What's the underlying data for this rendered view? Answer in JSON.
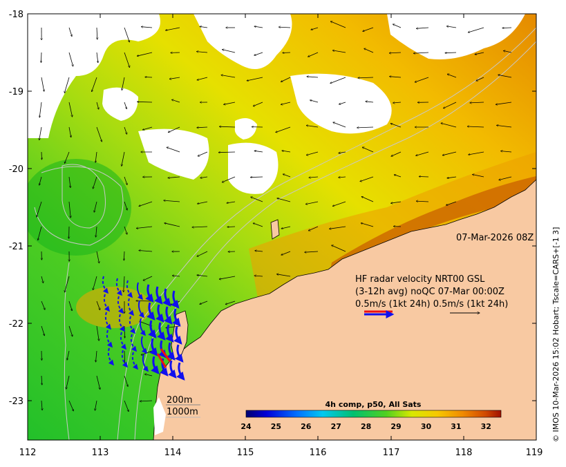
{
  "map": {
    "lat_ticks": [
      "-18",
      "-19",
      "-20",
      "-21",
      "-22",
      "-23"
    ],
    "lon_ticks": [
      "112",
      "113",
      "114",
      "115",
      "116",
      "117",
      "118",
      "119"
    ],
    "timestamp": "07-Mar-2026 08Z",
    "legend": {
      "line1": "HF radar velocity  NRT00 GSL",
      "line2": "(3-12h avg) noQC 07-Mar 00:00Z",
      "line3": "0.5m/s (1kt 24h)  0.5m/s (1kt 24h)"
    },
    "depth_labels": [
      "200m",
      "1000m"
    ],
    "colorbar": {
      "title": "4h comp, p50, All Sats",
      "ticks": [
        "24",
        "25",
        "26",
        "27",
        "28",
        "29",
        "30",
        "31",
        "32"
      ],
      "range": [
        24,
        32.5
      ]
    },
    "credit": "© IMOS 10-Mar-2026 15:02 Hobart; Tscale=CARS+[-1 3]",
    "colors": {
      "land": "#f8c9a2",
      "cloud": "#ffffff",
      "radar_arrow": "#1010ee",
      "radar_arrow_red": "#ee1111"
    }
  }
}
